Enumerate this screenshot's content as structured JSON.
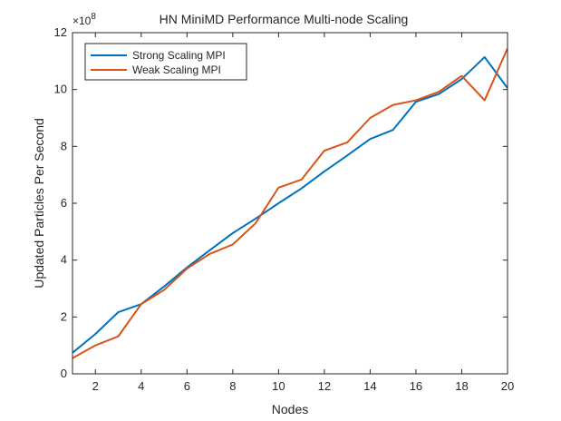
{
  "chart_data": {
    "type": "line",
    "title": "HN MiniMD Performance Multi-node Scaling",
    "xlabel": "Nodes",
    "ylabel": "Updated Particles Per Second",
    "y_exponent_label": "×10",
    "y_exponent_power": "8",
    "xlim": [
      1,
      20
    ],
    "ylim": [
      0,
      12
    ],
    "x_ticks": [
      2,
      4,
      6,
      8,
      10,
      12,
      14,
      16,
      18,
      20
    ],
    "y_ticks": [
      0,
      2,
      4,
      6,
      8,
      10,
      12
    ],
    "grid": false,
    "legend_position": "top-left",
    "x": [
      1,
      2,
      3,
      4,
      5,
      6,
      7,
      8,
      9,
      10,
      11,
      12,
      13,
      14,
      15,
      16,
      17,
      18,
      19,
      20
    ],
    "series": [
      {
        "name": "Strong Scaling MPI",
        "color": "#0072BD",
        "values": [
          0.74,
          1.4,
          2.17,
          2.45,
          3.07,
          3.74,
          4.35,
          4.95,
          5.46,
          6.0,
          6.52,
          7.12,
          7.68,
          8.26,
          8.58,
          9.57,
          9.84,
          10.37,
          11.14,
          10.05
        ]
      },
      {
        "name": "Weak Scaling MPI",
        "color": "#D95319",
        "values": [
          0.55,
          1.0,
          1.32,
          2.45,
          2.95,
          3.7,
          4.22,
          4.55,
          5.3,
          6.55,
          6.83,
          7.85,
          8.14,
          9.0,
          9.46,
          9.62,
          9.92,
          10.48,
          9.62,
          11.45
        ]
      }
    ]
  }
}
